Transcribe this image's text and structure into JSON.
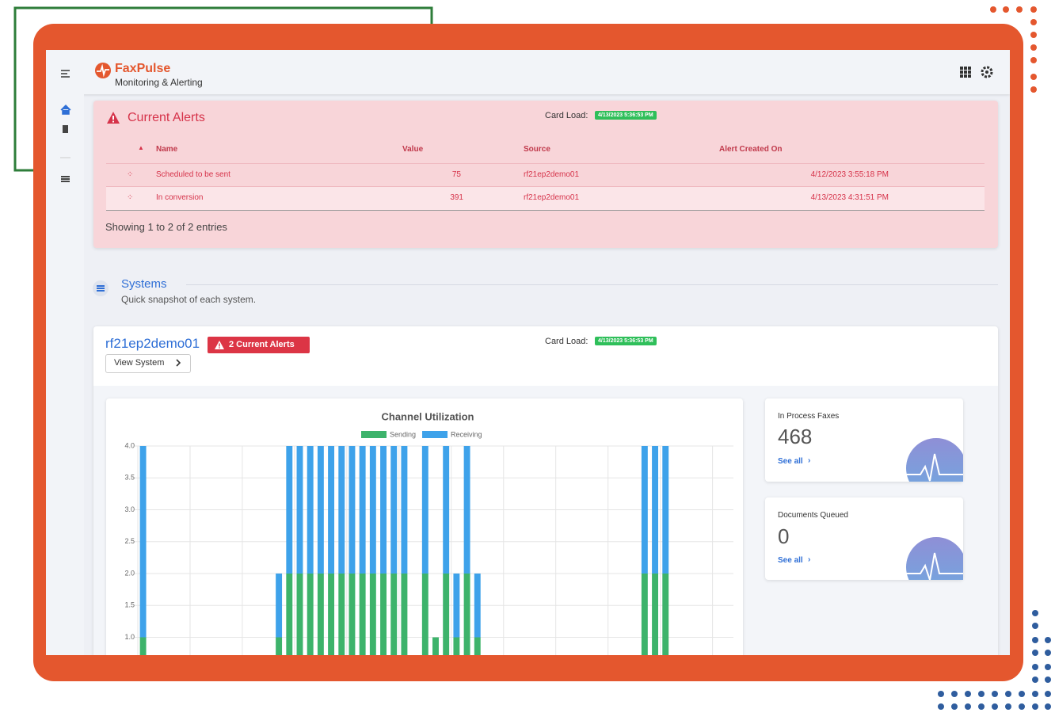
{
  "header": {
    "brand": "FaxPulse",
    "tagline": "Monitoring & Alerting"
  },
  "alerts": {
    "title": "Current Alerts",
    "card_load_label": "Card Load:",
    "card_load": "4/13/2023 5:36:53 PM",
    "columns": [
      "Name",
      "Value",
      "Source",
      "Alert Created On"
    ],
    "rows": [
      [
        "Scheduled to be sent",
        75,
        "rf21ep2demo01",
        "4/12/2023 3:55:18 PM"
      ],
      [
        "In conversion",
        391,
        "rf21ep2demo01",
        "4/13/2023 4:31:51 PM"
      ]
    ],
    "footer": "Showing 1 to 2 of 2 entries"
  },
  "systems": {
    "title": "Systems",
    "subtitle": "Quick snapshot of each system."
  },
  "system": {
    "name": "rf21ep2demo01",
    "alert_badge": "2 Current Alerts",
    "button": "View System",
    "card_load_label": "Card Load:",
    "card_load": "4/13/2023 5:36:53 PM",
    "stats": [
      {
        "label": "In Process Faxes",
        "value": 468,
        "link": "See all"
      },
      {
        "label": "Documents Queued",
        "value": 0,
        "link": "See all"
      }
    ]
  },
  "chart_data": {
    "type": "bar",
    "stacked": true,
    "title": "Channel Utilization",
    "categories": [
      null,
      null,
      null,
      null,
      null,
      null,
      null,
      null,
      null,
      null,
      null,
      null,
      null,
      null,
      null,
      null,
      null,
      null,
      null,
      null,
      null,
      null,
      null,
      null,
      null,
      null,
      null,
      null,
      null,
      null,
      null,
      null,
      null,
      null,
      null,
      null,
      null,
      null,
      null,
      null,
      null,
      null,
      null,
      null,
      null,
      null,
      null,
      null,
      null,
      null,
      null,
      null,
      null,
      null,
      null,
      null,
      null
    ],
    "series": [
      {
        "name": "Sending",
        "color": "#3db36b",
        "values": [
          1,
          0,
          0,
          0,
          0,
          0,
          0,
          0,
          0,
          0,
          0,
          0,
          0,
          1,
          2,
          2,
          2,
          2,
          2,
          2,
          2,
          2,
          2,
          2,
          2,
          2,
          0,
          2,
          1,
          2,
          1,
          2,
          1,
          0,
          0,
          0,
          0,
          0,
          0,
          0,
          0,
          0,
          0,
          0,
          0,
          0,
          0,
          0,
          2,
          2,
          2,
          0,
          0,
          0,
          0,
          0,
          0
        ]
      },
      {
        "name": "Receiving",
        "color": "#3ea2ea",
        "values": [
          3,
          0,
          0,
          0,
          0,
          0,
          0,
          0,
          0,
          0,
          0,
          0,
          0,
          1,
          2,
          2,
          2,
          2,
          2,
          2,
          2,
          2,
          2,
          2,
          2,
          2,
          0,
          2,
          0,
          2,
          1,
          2,
          1,
          0,
          0,
          0,
          0,
          0,
          0,
          0,
          0,
          0,
          0,
          0,
          0,
          0,
          0,
          0,
          2,
          2,
          2,
          0,
          0,
          0,
          0,
          0,
          0
        ]
      }
    ],
    "ylim": [
      0,
      4
    ],
    "yticks": [
      {
        "value": 1,
        "label": "1.0"
      },
      {
        "value": 1.5,
        "label": "1.5"
      },
      {
        "value": 2,
        "label": "2.0"
      },
      {
        "value": 2.5,
        "label": "2.5"
      },
      {
        "value": 3,
        "label": "3.0"
      },
      {
        "value": 3.5,
        "label": "3.5"
      },
      {
        "value": 4,
        "label": "4.0"
      }
    ],
    "grid": true
  }
}
